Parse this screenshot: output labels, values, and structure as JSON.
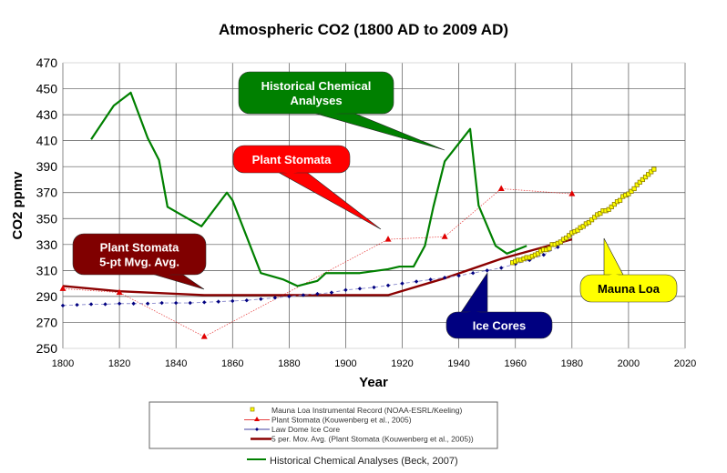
{
  "chart_data": {
    "type": "line",
    "title": "Atmospheric CO2 (1800 AD to 2009 AD)",
    "xlabel": "Year",
    "ylabel": "CO2 ppmv",
    "xlim": [
      1800,
      2020
    ],
    "ylim": [
      250,
      470
    ],
    "xticks": [
      1800,
      1820,
      1840,
      1860,
      1880,
      1900,
      1920,
      1940,
      1960,
      1980,
      2000,
      2020
    ],
    "yticks": [
      250,
      270,
      290,
      310,
      330,
      350,
      370,
      390,
      410,
      430,
      450,
      470
    ],
    "grid": true,
    "legend_position": "bottom",
    "series": [
      {
        "key": "mauna",
        "name": "Mauna Loa Instrumental Record (NOAA-ESRL/Keeling)",
        "color": "#ffff00",
        "edge": "#8a7a00",
        "marker": "square",
        "x": [
          1959,
          1960,
          1961,
          1962,
          1963,
          1964,
          1965,
          1966,
          1967,
          1968,
          1969,
          1970,
          1971,
          1972,
          1973,
          1974,
          1975,
          1976,
          1977,
          1978,
          1979,
          1980,
          1981,
          1982,
          1983,
          1984,
          1985,
          1986,
          1987,
          1988,
          1989,
          1990,
          1991,
          1992,
          1993,
          1994,
          1995,
          1996,
          1997,
          1998,
          1999,
          2000,
          2001,
          2002,
          2003,
          2004,
          2005,
          2006,
          2007,
          2008,
          2009
        ],
        "y": [
          316,
          317,
          318,
          318,
          319,
          320,
          320,
          321,
          322,
          323,
          325,
          326,
          326,
          327,
          330,
          330,
          331,
          332,
          334,
          335,
          337,
          339,
          340,
          341,
          343,
          344,
          346,
          347,
          349,
          351,
          353,
          354,
          356,
          356,
          357,
          359,
          361,
          363,
          364,
          367,
          368,
          369,
          371,
          373,
          376,
          378,
          380,
          382,
          384,
          386,
          388
        ]
      },
      {
        "key": "stomata",
        "name": "Plant Stomata (Kouwenberg et al., 2005)",
        "color": "#e00000",
        "marker": "triangle",
        "x": [
          1800,
          1820,
          1850,
          1915,
          1935,
          1955,
          1980
        ],
        "y": [
          296,
          293,
          259,
          334,
          336,
          373,
          369
        ]
      },
      {
        "key": "ice",
        "name": "Law Dome Ice Core",
        "color": "#000080",
        "marker": "diamond",
        "x": [
          1800,
          1805,
          1810,
          1815,
          1820,
          1825,
          1830,
          1835,
          1840,
          1845,
          1850,
          1855,
          1860,
          1865,
          1870,
          1875,
          1880,
          1885,
          1890,
          1895,
          1900,
          1905,
          1910,
          1915,
          1920,
          1925,
          1930,
          1935,
          1940,
          1945,
          1950,
          1955,
          1960,
          1965,
          1970,
          1975
        ],
        "y": [
          283,
          283.5,
          284,
          284,
          284.5,
          284.5,
          284.5,
          285,
          285,
          285,
          285.5,
          286,
          286.5,
          287,
          288,
          289,
          290,
          291,
          292,
          293,
          295,
          296,
          297,
          298.5,
          300,
          301.5,
          303,
          304.5,
          306,
          308,
          310,
          312,
          315,
          318,
          322,
          328
        ]
      },
      {
        "key": "mavg",
        "name": "5 per. Mov. Avg. (Plant Stomata (Kouwenberg et al., 2005))",
        "color": "#8b0000",
        "marker": "none",
        "x": [
          1800,
          1820,
          1850,
          1880,
          1915,
          1935,
          1955,
          1980
        ],
        "y": [
          298,
          294,
          291,
          291,
          291,
          304,
          319,
          334
        ]
      },
      {
        "key": "beck",
        "name": "Historical Chemical Analyses (Beck, 2007)",
        "color": "#008000",
        "marker": "none",
        "x": [
          1810,
          1818,
          1824,
          1830,
          1834,
          1837,
          1849,
          1858,
          1860,
          1870,
          1878,
          1883,
          1890,
          1893,
          1905,
          1915,
          1919,
          1924,
          1928,
          1931,
          1935,
          1944,
          1947,
          1953,
          1957,
          1964
        ],
        "y": [
          411,
          437,
          447,
          412,
          395,
          359,
          344,
          370,
          364,
          308,
          303,
          298,
          302,
          308,
          308,
          311,
          313,
          313,
          329,
          359,
          394,
          419,
          360,
          329,
          323,
          329
        ]
      }
    ],
    "annotations": [
      {
        "key": "beck",
        "text": [
          "Historical Chemical",
          "Analyses"
        ],
        "fill": "#008000",
        "text_color": "#ffffff"
      },
      {
        "key": "stomata",
        "text": [
          "Plant Stomata"
        ],
        "fill": "#ff0000",
        "text_color": "#ffffff"
      },
      {
        "key": "mavg",
        "text": [
          "Plant Stomata",
          "5-pt Mvg. Avg."
        ],
        "fill": "#800000",
        "text_color": "#ffffff"
      },
      {
        "key": "ice",
        "text": [
          "Ice Cores"
        ],
        "fill": "#000080",
        "text_color": "#ffffff"
      },
      {
        "key": "mauna",
        "text": [
          "Mauna Loa"
        ],
        "fill": "#ffff00",
        "text_color": "#000000"
      }
    ]
  }
}
